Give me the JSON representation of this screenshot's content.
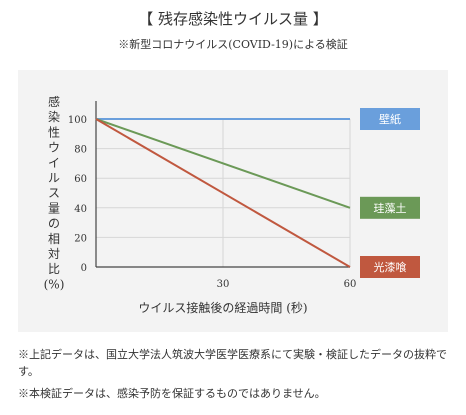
{
  "header": {
    "title": "【 残存感染性ウイルス量 】",
    "subtitle": "※新型コロナウイルス(COVID-19)による検証"
  },
  "colors": {
    "wall": "#6a9fdc",
    "soil": "#6b9957",
    "plaster": "#c0583f",
    "panel": "#f3f3f3",
    "grid": "#d6d6d6"
  },
  "chart_data": {
    "type": "line",
    "xlabel": "ウイルス接触後の経過時間 (秒)",
    "ylabel": [
      "感",
      "染",
      "性",
      "ウ",
      "イ",
      "ル",
      "ス",
      "量",
      "の",
      "相",
      "対",
      "比",
      "(%)"
    ],
    "xlim": [
      0,
      60
    ],
    "ylim": [
      0,
      100
    ],
    "xticks": [
      "30",
      "60"
    ],
    "yticks": [
      "100",
      "80",
      "60",
      "40",
      "20",
      "0"
    ],
    "x": [
      0,
      60
    ],
    "series": [
      {
        "name": "壁紙",
        "values": [
          100,
          100
        ],
        "color": "#6a9fdc"
      },
      {
        "name": "珪藻土",
        "values": [
          100,
          40
        ],
        "color": "#6b9957"
      },
      {
        "name": "光漆喰",
        "values": [
          100,
          0
        ],
        "color": "#c0583f"
      }
    ]
  },
  "notes": [
    "※上記データは、国立大学法人筑波大学医学医療系にて実験・検証したデータの抜粋です。",
    "※本検証データは、感染予防を保証するものではありません。"
  ]
}
